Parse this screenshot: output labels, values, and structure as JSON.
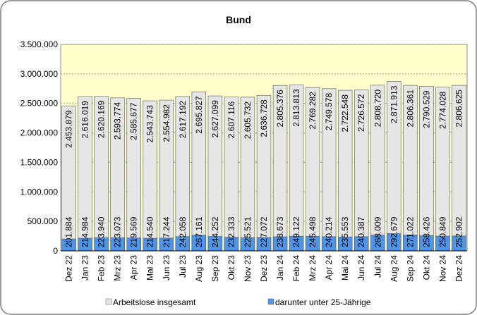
{
  "chart_data": {
    "type": "bar",
    "title": "Bund",
    "categories": [
      "Dez 22",
      "Jan 23",
      "Feb 23",
      "Mrz 23",
      "Apr 23",
      "Mai 23",
      "Jun 23",
      "Jul 23",
      "Aug 23",
      "Sep 23",
      "Okt 23",
      "Nov 23",
      "Dez 23",
      "Jan 24",
      "Feb 24",
      "Mrz 24",
      "Apr 24",
      "Mai 24",
      "Jun 24",
      "Jul 24",
      "Aug 24",
      "Sep 24",
      "Okt 24",
      "Nov 24",
      "Dez 24"
    ],
    "series": [
      {
        "name": "Arbeitslose insgesamt",
        "color": "#e6e6e6",
        "values": [
          2453879,
          2616019,
          2620169,
          2593774,
          2585677,
          2543743,
          2554982,
          2617192,
          2695827,
          2627099,
          2607116,
          2605732,
          2636728,
          2805376,
          2813813,
          2769282,
          2749578,
          2722548,
          2726572,
          2808720,
          2871913,
          2806361,
          2790529,
          2774028,
          2806625
        ],
        "value_labels": [
          "2.453.879",
          "2.616.019",
          "2.620.169",
          "2.593.774",
          "2.585.677",
          "2.543.743",
          "2.554.982",
          "2.617.192",
          "2.695.827",
          "2.627.099",
          "2.607.116",
          "2.605.732",
          "2.636.728",
          "2.805.376",
          "2.813.813",
          "2.769.282",
          "2.749.578",
          "2.722.548",
          "2.726.572",
          "2.808.720",
          "2.871.913",
          "2.806.361",
          "2.790.529",
          "2.774.028",
          "2.806.625"
        ]
      },
      {
        "name": "darunter unter 25-Jährige",
        "color": "#4f94e8",
        "values": [
          201884,
          214984,
          223940,
          223073,
          219569,
          214540,
          217244,
          242058,
          267161,
          244252,
          232333,
          225521,
          227072,
          238673,
          249122,
          245498,
          240214,
          235553,
          240387,
          268009,
          292679,
          271022,
          258426,
          250849,
          252902
        ],
        "value_labels": [
          "201.884",
          "214.984",
          "223.940",
          "223.073",
          "219.569",
          "214.540",
          "217.244",
          "242.058",
          "267.161",
          "244.252",
          "232.333",
          "225.521",
          "227.072",
          "238.673",
          "249.122",
          "245.498",
          "240.214",
          "235.553",
          "240.387",
          "268.009",
          "292.679",
          "271.022",
          "258.426",
          "250.849",
          "252.902"
        ]
      }
    ],
    "ylim": [
      0,
      3500000
    ],
    "yticks": [
      0,
      {
        "value": 500000,
        "label": "500.000"
      },
      {
        "value": 1000000,
        "label": "1.000.000"
      },
      {
        "value": 1500000,
        "label": "1.500.000"
      },
      {
        "value": 2000000,
        "label": "2.000.000"
      },
      {
        "value": 2500000,
        "label": "2.500.000"
      },
      {
        "value": 3000000,
        "label": "3.000.000"
      },
      {
        "value": 3500000,
        "label": "3.500.000"
      }
    ],
    "grid": true,
    "legend": "bottom"
  }
}
